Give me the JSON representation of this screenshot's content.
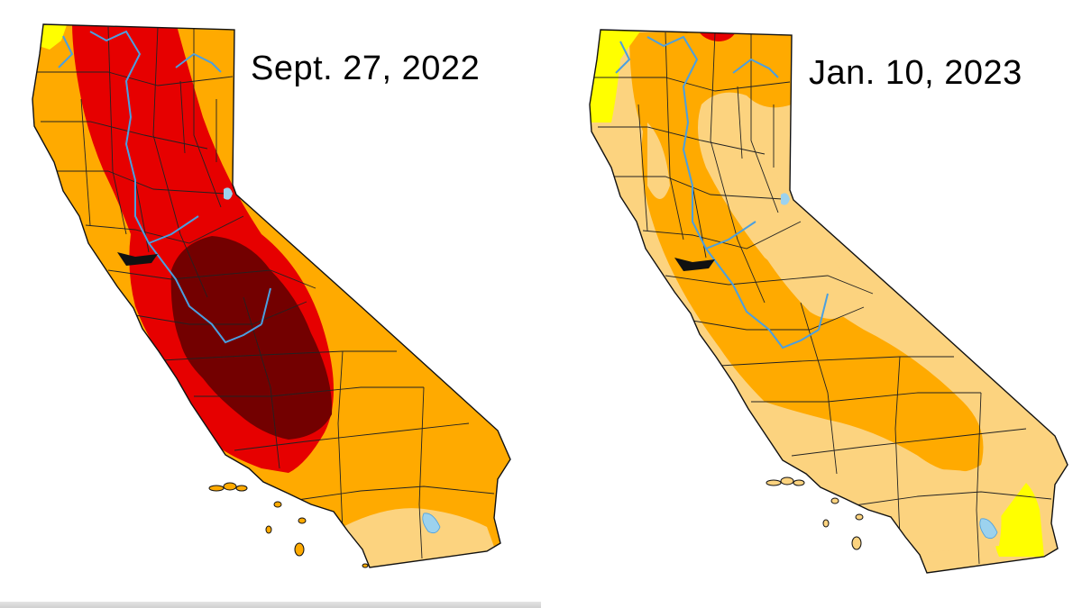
{
  "maps": [
    {
      "date_label": "Sept. 27, 2022"
    },
    {
      "date_label": "Jan. 10, 2023"
    }
  ],
  "colors": {
    "none": "#ffffff",
    "abnormally_dry": "#ffff00",
    "moderate_drought": "#fcd37f",
    "severe_drought": "#ffaa00",
    "extreme_drought": "#e60000",
    "exceptional_drought": "#730000",
    "water": "#4a9fe0",
    "lakes": "#9cd2ee",
    "county_lines": "#222222"
  }
}
